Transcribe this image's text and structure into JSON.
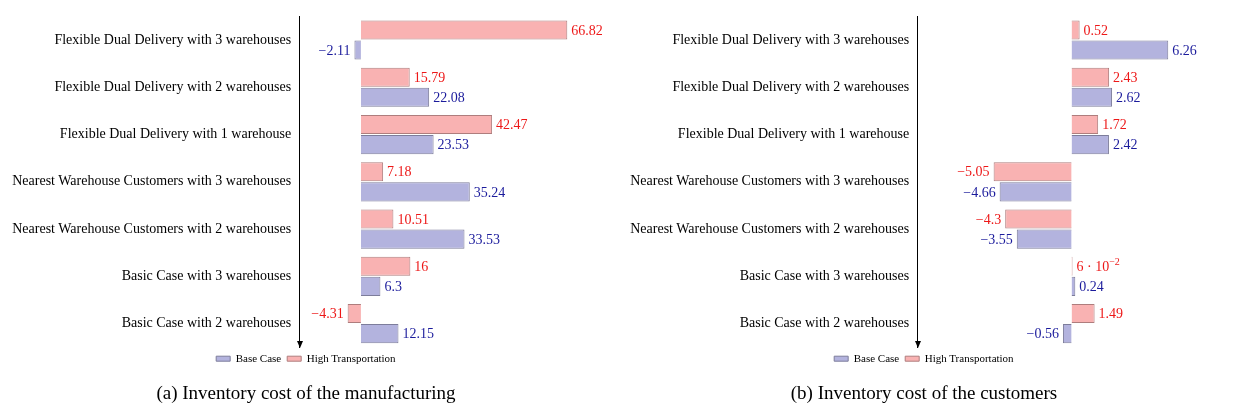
{
  "chart_data": [
    {
      "type": "bar",
      "orientation": "horizontal",
      "title": "(a) Inventory cost of the manufacturing",
      "categories": [
        "Flexible Dual Delivery with 3 warehouses",
        "Flexible Dual Delivery with 2 warehouses",
        "Flexible Dual Delivery with 1 warehouse",
        "Nearest Warehouse Customers with 3 warehouses",
        "Nearest Warehouse Customers with 2 warehouses",
        "Basic Case with 3 warehouses",
        "Basic Case with 2 warehouses"
      ],
      "series": [
        {
          "name": "Base Case",
          "color": "#b3b3de",
          "values": [
            -2.11,
            22.08,
            23.53,
            35.24,
            33.53,
            6.3,
            12.15
          ]
        },
        {
          "name": "High Transportation",
          "color": "#f9b2b2",
          "values": [
            66.82,
            15.79,
            42.47,
            7.18,
            10.51,
            16,
            -4.31
          ]
        }
      ],
      "data_labels": true,
      "legend": "bottom",
      "grid": false,
      "tick_labels": "y"
    },
    {
      "type": "bar",
      "orientation": "horizontal",
      "title": "(b) Inventory cost of the customers",
      "categories": [
        "Flexible Dual Delivery with 3 warehouses",
        "Flexible Dual Delivery with 2 warehouses",
        "Flexible Dual Delivery with 1 warehouse",
        "Nearest Warehouse Customers with 3 warehouses",
        "Nearest Warehouse Customers with 2 warehouses",
        "Basic Case with 3 warehouses",
        "Basic Case with 2 warehouses"
      ],
      "series": [
        {
          "name": "Base Case",
          "color": "#b3b3de",
          "values": [
            6.26,
            2.62,
            2.42,
            -4.66,
            -3.55,
            0.24,
            -0.56
          ]
        },
        {
          "name": "High Transportation",
          "color": "#f9b2b2",
          "values": [
            0.52,
            2.43,
            1.72,
            -5.05,
            -4.3,
            0.06,
            1.49
          ],
          "value_labels": [
            "0.52",
            "2.43",
            "1.72",
            "−5.05",
            "−4.3",
            "6 · 10$^{−2}$",
            "1.49"
          ]
        }
      ],
      "data_labels": true,
      "legend": "bottom",
      "grid": false,
      "tick_labels": "y"
    }
  ]
}
